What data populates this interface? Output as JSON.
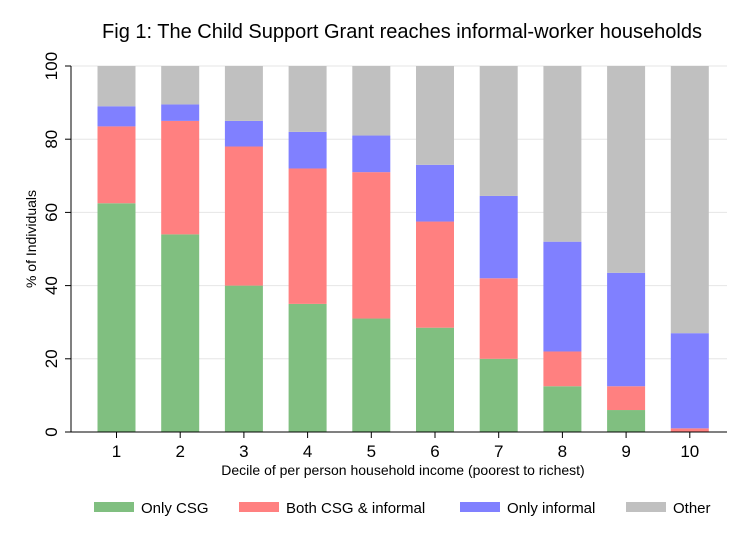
{
  "chart_data": {
    "type": "bar",
    "stacked": true,
    "title": "Fig 1: The Child Support Grant reaches informal-worker households",
    "xlabel": "Decile of per person household income (poorest to richest)",
    "ylabel": "% of Individuals",
    "ylim": [
      0,
      100
    ],
    "yticks": [
      "0",
      "20",
      "40",
      "60",
      "80",
      "100"
    ],
    "categories": [
      "1",
      "2",
      "3",
      "4",
      "5",
      "6",
      "7",
      "8",
      "9",
      "10"
    ],
    "grid": true,
    "legend_position": "bottom",
    "series": [
      {
        "name": "Only CSG",
        "color": "#80bf80",
        "values": [
          62.5,
          54,
          40,
          35,
          31,
          28.5,
          20,
          12.5,
          6,
          0
        ]
      },
      {
        "name": "Both CSG & informal",
        "color": "#ff8080",
        "values": [
          21,
          31,
          38,
          37,
          40,
          29,
          22,
          9.5,
          6.5,
          1
        ]
      },
      {
        "name": "Only informal",
        "color": "#8080ff",
        "values": [
          5.5,
          4.5,
          7,
          10,
          10,
          15.5,
          22.5,
          30,
          31,
          26
        ]
      },
      {
        "name": "Other",
        "color": "#c0c0c0",
        "values": [
          11,
          10.5,
          15,
          18,
          19,
          27,
          35.5,
          48,
          56.5,
          73
        ]
      }
    ]
  }
}
